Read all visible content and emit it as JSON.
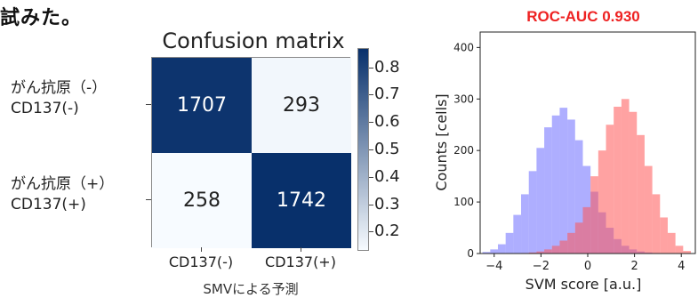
{
  "caption": "試みた。",
  "chart_data": [
    {
      "type": "heatmap",
      "title": "Confusion matrix",
      "row_labels": [
        "がん抗原（-）\nCD137(-)",
        "がん抗原（+）\nCD137(+)"
      ],
      "col_labels": [
        "CD137(-)",
        "CD137(+)"
      ],
      "xlabel": "SMVによる予測",
      "values": [
        [
          1707,
          293
        ],
        [
          258,
          1742
        ]
      ],
      "normalized": [
        [
          0.854,
          0.146
        ],
        [
          0.129,
          0.871
        ]
      ],
      "colorbar": {
        "ticks": [
          "0.8",
          "0.7",
          "0.6",
          "0.5",
          "0.4",
          "0.3",
          "0.2"
        ],
        "range": [
          0.13,
          0.87
        ]
      },
      "colors": {
        "high": "#08306b",
        "low": "#f7fbff"
      }
    },
    {
      "type": "bar",
      "title": "ROC-AUC 0.930",
      "xlabel": "SVM score [a.u.]",
      "ylabel": "Counts [cells]",
      "xlim": [
        -4.6,
        4.6
      ],
      "ylim": [
        0,
        430
      ],
      "xticks": [
        "−4",
        "−2",
        "0",
        "2",
        "4"
      ],
      "yticks": [
        "0",
        "100",
        "200",
        "300",
        "400"
      ],
      "bin_start": -4.5,
      "bin_width": 0.33,
      "series": [
        {
          "color": "#6b6bff",
          "values": [
            3,
            8,
            18,
            40,
            75,
            115,
            160,
            205,
            245,
            268,
            283,
            260,
            220,
            170,
            120,
            80,
            50,
            28,
            15,
            8,
            4,
            2,
            1,
            0,
            0,
            0,
            0
          ]
        },
        {
          "color": "#ff5555",
          "values": [
            0,
            0,
            0,
            0,
            0,
            1,
            2,
            4,
            8,
            15,
            25,
            40,
            60,
            90,
            150,
            200,
            250,
            285,
            300,
            275,
            230,
            170,
            115,
            70,
            40,
            15,
            5
          ]
        }
      ],
      "title_color": "#ee2222"
    }
  ]
}
